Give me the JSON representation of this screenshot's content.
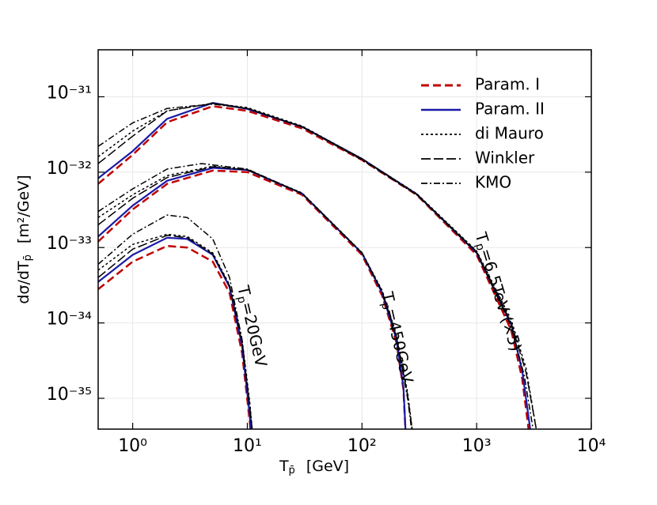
{
  "chart_data": {
    "type": "line",
    "log_x": true,
    "log_y": true,
    "grid": true,
    "legend": "upper right",
    "xlabel": {
      "text": "T",
      "sub": "p̄",
      "unit": "[GeV]"
    },
    "ylabel": {
      "text": "dσ/dT",
      "sub": "p̄",
      "unit": "[m²/GeV]"
    },
    "xlim": [
      0.5,
      10000
    ],
    "xticks": [
      {
        "value": 1,
        "label": "10⁰"
      },
      {
        "value": 10,
        "label": "10¹"
      },
      {
        "value": 100,
        "label": "10²"
      },
      {
        "value": 1000,
        "label": "10³"
      },
      {
        "value": 10000,
        "label": "10⁴"
      }
    ],
    "ylim": [
      3.9e-36,
      4.2e-31
    ],
    "yticks": [
      {
        "value": 1e-35,
        "label": "10⁻³⁵"
      },
      {
        "value": 1e-34,
        "label": "10⁻³⁴"
      },
      {
        "value": 1e-33,
        "label": "10⁻³³"
      },
      {
        "value": 1e-32,
        "label": "10⁻³²"
      },
      {
        "value": 1e-31,
        "label": "10⁻³¹"
      }
    ],
    "annotations": [
      {
        "text": "T",
        "sub": "p",
        "rest": "=6.5TeV (×5)"
      },
      {
        "text": "T",
        "sub": "p",
        "rest": "=450GeV"
      },
      {
        "text": "T",
        "sub": "p",
        "rest": "=20GeV"
      }
    ],
    "series": [
      {
        "name": "Param. I",
        "color": "#c00000",
        "dash": "10,5",
        "x": [
          0.5,
          1,
          2,
          5,
          10,
          30,
          100,
          300,
          1000,
          2000,
          2500,
          2900
        ],
        "values": [
          7e-33,
          1.7e-32,
          4.6e-32,
          7.5e-32,
          6.5e-32,
          3.8e-32,
          1.45e-32,
          5e-33,
          8e-34,
          8e-35,
          1.8e-35,
          3e-36
        ]
      },
      {
        "name": "Param. II",
        "color": "#1a1aa6",
        "dash": "none",
        "x": [
          0.5,
          1,
          2,
          5,
          10,
          30,
          100,
          300,
          1000,
          2000,
          2500,
          3000
        ],
        "values": [
          8.3e-33,
          1.9e-32,
          5.1e-32,
          8.3e-32,
          6.9e-32,
          4e-32,
          1.5e-32,
          5.1e-33,
          8.5e-34,
          9.5e-35,
          2.3e-35,
          3e-36
        ]
      },
      {
        "name": "di Mauro",
        "color": "#000000",
        "dash": "3,3",
        "x": [
          0.5,
          1,
          2,
          5,
          10,
          30,
          100,
          300,
          1000,
          2000,
          2700,
          3300
        ],
        "values": [
          1.6e-32,
          3.5e-32,
          6.5e-32,
          8.2e-32,
          7.2e-32,
          4.1e-32,
          1.5e-32,
          5.2e-33,
          9e-34,
          1.1e-34,
          2.5e-35,
          4e-36
        ]
      },
      {
        "name": "Winkler",
        "color": "#000000",
        "dash": "12,4",
        "x": [
          0.5,
          1,
          2,
          5,
          10,
          30,
          100,
          300,
          1000,
          2000,
          2700,
          3300
        ],
        "values": [
          1.3e-32,
          3e-32,
          6.5e-32,
          8.2e-32,
          7e-32,
          4e-32,
          1.5e-32,
          5.1e-33,
          8.8e-34,
          1e-34,
          2.2e-35,
          4e-36
        ]
      },
      {
        "name": "KMO",
        "color": "#000000",
        "dash": "8,3,2,3",
        "x": [
          0.5,
          1,
          2,
          5,
          10,
          30,
          100,
          300,
          1000,
          2000,
          2600,
          3100
        ],
        "values": [
          2.2e-32,
          4.5e-32,
          7e-32,
          8e-32,
          7e-32,
          4e-32,
          1.45e-32,
          5e-33,
          8.5e-34,
          9e-35,
          2e-35,
          4e-36
        ]
      },
      {
        "name": "Param. I",
        "color": "#c00000",
        "dash": "10,5",
        "x": [
          0.5,
          1,
          2,
          5,
          10,
          30,
          100,
          150,
          200,
          230,
          250
        ],
        "values": [
          1.2e-33,
          3.2e-33,
          7e-33,
          1.05e-32,
          1e-32,
          5e-33,
          8e-34,
          2.3e-34,
          5.5e-35,
          1.3e-35,
          1e-36
        ]
      },
      {
        "name": "Param. II",
        "color": "#1a1aa6",
        "dash": "none",
        "x": [
          0.5,
          1,
          2,
          5,
          10,
          30,
          100,
          150,
          200,
          230,
          250
        ],
        "values": [
          1.4e-33,
          3.6e-33,
          7.7e-33,
          1.14e-32,
          1.07e-32,
          5.2e-33,
          8.4e-34,
          2.5e-34,
          6e-35,
          1.4e-35,
          1e-36
        ]
      },
      {
        "name": "di Mauro",
        "color": "#000000",
        "dash": "3,3",
        "x": [
          0.5,
          1,
          2,
          5,
          10,
          30,
          100,
          150,
          200,
          250,
          280
        ],
        "values": [
          2.5e-33,
          5e-33,
          9e-33,
          1.2e-32,
          1.08e-32,
          5.3e-33,
          8.6e-34,
          2.7e-34,
          7e-35,
          1.2e-35,
          3e-36
        ]
      },
      {
        "name": "Winkler",
        "color": "#000000",
        "dash": "12,4",
        "x": [
          0.5,
          1,
          2,
          5,
          10,
          30,
          100,
          150,
          200,
          250,
          280
        ],
        "values": [
          2e-33,
          4.5e-33,
          8.5e-33,
          1.18e-32,
          1.07e-32,
          5.2e-33,
          8.5e-34,
          2.6e-34,
          6.5e-35,
          1.1e-35,
          3e-36
        ]
      },
      {
        "name": "KMO",
        "color": "#000000",
        "dash": "8,3,2,3",
        "x": [
          0.5,
          1,
          2,
          4,
          10,
          30,
          100,
          150,
          200,
          250,
          270
        ],
        "values": [
          3e-33,
          6e-33,
          1.1e-32,
          1.3e-32,
          1.1e-32,
          5.2e-33,
          8.5e-34,
          2.6e-34,
          6.5e-35,
          1e-35,
          4e-36
        ]
      },
      {
        "name": "Param. I",
        "color": "#c00000",
        "dash": "10,5",
        "x": [
          0.5,
          1,
          2,
          3,
          5,
          7,
          9,
          10.5,
          11
        ],
        "values": [
          2.8e-34,
          6.5e-34,
          1.05e-33,
          1e-33,
          6.5e-34,
          2.5e-34,
          4e-35,
          5e-36,
          2e-36
        ]
      },
      {
        "name": "Param. II",
        "color": "#1a1aa6",
        "dash": "none",
        "x": [
          0.5,
          1,
          2,
          3,
          5,
          7,
          9,
          10.5,
          11
        ],
        "values": [
          3.5e-34,
          8e-34,
          1.35e-33,
          1.3e-33,
          8e-34,
          3e-34,
          5e-35,
          6e-36,
          2e-36
        ]
      },
      {
        "name": "di Mauro",
        "color": "#000000",
        "dash": "3,3",
        "x": [
          0.5,
          1,
          2,
          3,
          5,
          7,
          9,
          10.5,
          11.5
        ],
        "values": [
          5e-34,
          1.1e-33,
          1.5e-33,
          1.4e-33,
          8.5e-34,
          3.2e-34,
          6e-35,
          9e-36,
          2e-36
        ]
      },
      {
        "name": "Winkler",
        "color": "#000000",
        "dash": "12,4",
        "x": [
          0.5,
          1,
          2,
          3,
          5,
          7,
          9,
          10.5,
          11.5
        ],
        "values": [
          4e-34,
          9.5e-34,
          1.45e-33,
          1.35e-33,
          8.2e-34,
          3.1e-34,
          5.5e-35,
          8e-36,
          2e-36
        ]
      },
      {
        "name": "KMO",
        "color": "#000000",
        "dash": "8,3,2,3",
        "x": [
          0.5,
          1,
          2,
          3,
          5,
          7,
          9,
          11
        ],
        "values": [
          6e-34,
          1.5e-33,
          2.7e-33,
          2.5e-33,
          1.3e-33,
          4e-34,
          6e-35,
          4e-36
        ]
      }
    ]
  }
}
